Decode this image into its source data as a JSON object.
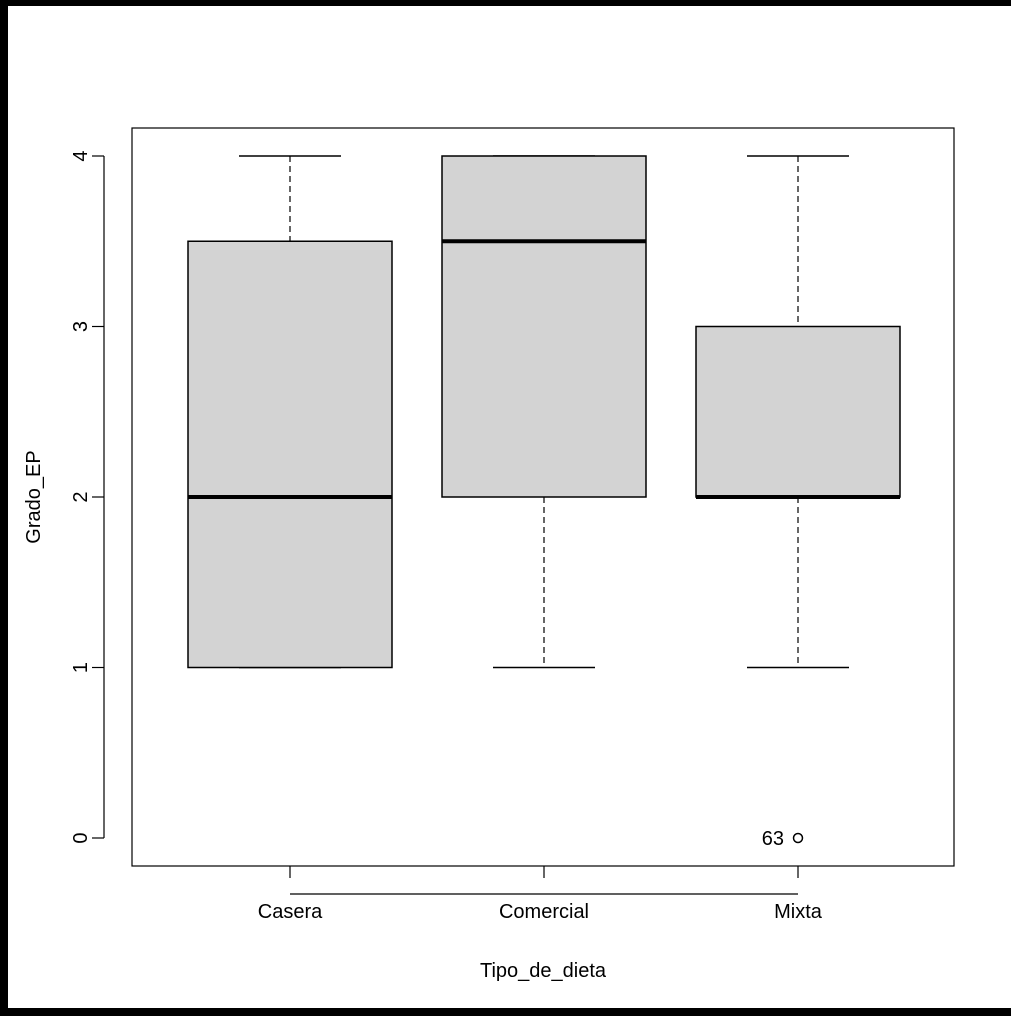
{
  "chart_data": {
    "type": "boxplot",
    "xlabel": "Tipo_de_dieta",
    "ylabel": "Grado_EP",
    "ylim": [
      0,
      4
    ],
    "yticks": [
      "0",
      "1",
      "2",
      "3",
      "4"
    ],
    "categories": [
      "Casera",
      "Comercial",
      "Mixta"
    ],
    "boxes": [
      {
        "category": "Casera",
        "whisker_low": 1,
        "q1": 1,
        "median": 2,
        "q3": 3.5,
        "whisker_high": 4
      },
      {
        "category": "Comercial",
        "whisker_low": 1,
        "q1": 2,
        "median": 3.5,
        "q3": 4,
        "whisker_high": 4
      },
      {
        "category": "Mixta",
        "whisker_low": 1,
        "q1": 2,
        "median": 2,
        "q3": 3,
        "whisker_high": 4
      }
    ],
    "outliers": [
      {
        "category": "Mixta",
        "value": 0,
        "label": "63"
      }
    ],
    "box_fill": "#d3d3d3",
    "line_color": "#000000",
    "background": "#ffffff",
    "frame_color": "#000000"
  }
}
